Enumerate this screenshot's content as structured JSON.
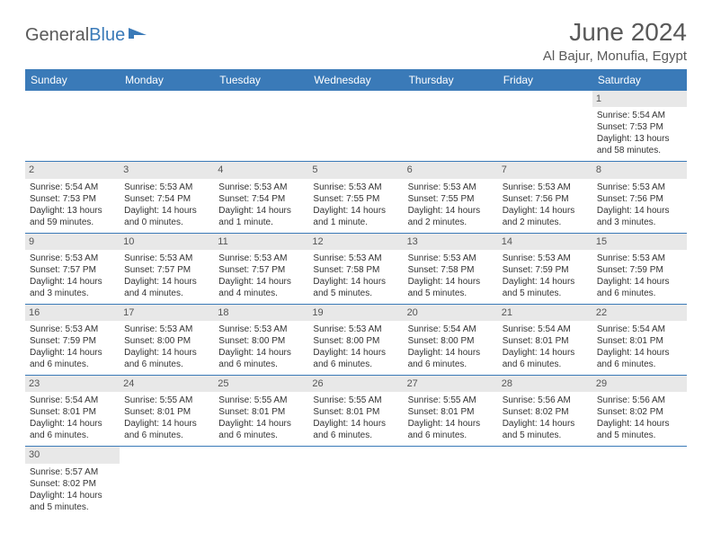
{
  "brand": {
    "name1": "General",
    "name2": "Blue"
  },
  "title": "June 2024",
  "location": "Al Bajur, Monufia, Egypt",
  "weekdays": [
    "Sunday",
    "Monday",
    "Tuesday",
    "Wednesday",
    "Thursday",
    "Friday",
    "Saturday"
  ],
  "colors": {
    "header_bg": "#3a7ab8",
    "header_text": "#ffffff",
    "daynum_bg": "#e8e8e8",
    "text": "#333333"
  },
  "rows": [
    [
      null,
      null,
      null,
      null,
      null,
      null,
      {
        "d": "1",
        "sr": "Sunrise: 5:54 AM",
        "ss": "Sunset: 7:53 PM",
        "dl1": "Daylight: 13 hours",
        "dl2": "and 58 minutes."
      }
    ],
    [
      {
        "d": "2",
        "sr": "Sunrise: 5:54 AM",
        "ss": "Sunset: 7:53 PM",
        "dl1": "Daylight: 13 hours",
        "dl2": "and 59 minutes."
      },
      {
        "d": "3",
        "sr": "Sunrise: 5:53 AM",
        "ss": "Sunset: 7:54 PM",
        "dl1": "Daylight: 14 hours",
        "dl2": "and 0 minutes."
      },
      {
        "d": "4",
        "sr": "Sunrise: 5:53 AM",
        "ss": "Sunset: 7:54 PM",
        "dl1": "Daylight: 14 hours",
        "dl2": "and 1 minute."
      },
      {
        "d": "5",
        "sr": "Sunrise: 5:53 AM",
        "ss": "Sunset: 7:55 PM",
        "dl1": "Daylight: 14 hours",
        "dl2": "and 1 minute."
      },
      {
        "d": "6",
        "sr": "Sunrise: 5:53 AM",
        "ss": "Sunset: 7:55 PM",
        "dl1": "Daylight: 14 hours",
        "dl2": "and 2 minutes."
      },
      {
        "d": "7",
        "sr": "Sunrise: 5:53 AM",
        "ss": "Sunset: 7:56 PM",
        "dl1": "Daylight: 14 hours",
        "dl2": "and 2 minutes."
      },
      {
        "d": "8",
        "sr": "Sunrise: 5:53 AM",
        "ss": "Sunset: 7:56 PM",
        "dl1": "Daylight: 14 hours",
        "dl2": "and 3 minutes."
      }
    ],
    [
      {
        "d": "9",
        "sr": "Sunrise: 5:53 AM",
        "ss": "Sunset: 7:57 PM",
        "dl1": "Daylight: 14 hours",
        "dl2": "and 3 minutes."
      },
      {
        "d": "10",
        "sr": "Sunrise: 5:53 AM",
        "ss": "Sunset: 7:57 PM",
        "dl1": "Daylight: 14 hours",
        "dl2": "and 4 minutes."
      },
      {
        "d": "11",
        "sr": "Sunrise: 5:53 AM",
        "ss": "Sunset: 7:57 PM",
        "dl1": "Daylight: 14 hours",
        "dl2": "and 4 minutes."
      },
      {
        "d": "12",
        "sr": "Sunrise: 5:53 AM",
        "ss": "Sunset: 7:58 PM",
        "dl1": "Daylight: 14 hours",
        "dl2": "and 5 minutes."
      },
      {
        "d": "13",
        "sr": "Sunrise: 5:53 AM",
        "ss": "Sunset: 7:58 PM",
        "dl1": "Daylight: 14 hours",
        "dl2": "and 5 minutes."
      },
      {
        "d": "14",
        "sr": "Sunrise: 5:53 AM",
        "ss": "Sunset: 7:59 PM",
        "dl1": "Daylight: 14 hours",
        "dl2": "and 5 minutes."
      },
      {
        "d": "15",
        "sr": "Sunrise: 5:53 AM",
        "ss": "Sunset: 7:59 PM",
        "dl1": "Daylight: 14 hours",
        "dl2": "and 6 minutes."
      }
    ],
    [
      {
        "d": "16",
        "sr": "Sunrise: 5:53 AM",
        "ss": "Sunset: 7:59 PM",
        "dl1": "Daylight: 14 hours",
        "dl2": "and 6 minutes."
      },
      {
        "d": "17",
        "sr": "Sunrise: 5:53 AM",
        "ss": "Sunset: 8:00 PM",
        "dl1": "Daylight: 14 hours",
        "dl2": "and 6 minutes."
      },
      {
        "d": "18",
        "sr": "Sunrise: 5:53 AM",
        "ss": "Sunset: 8:00 PM",
        "dl1": "Daylight: 14 hours",
        "dl2": "and 6 minutes."
      },
      {
        "d": "19",
        "sr": "Sunrise: 5:53 AM",
        "ss": "Sunset: 8:00 PM",
        "dl1": "Daylight: 14 hours",
        "dl2": "and 6 minutes."
      },
      {
        "d": "20",
        "sr": "Sunrise: 5:54 AM",
        "ss": "Sunset: 8:00 PM",
        "dl1": "Daylight: 14 hours",
        "dl2": "and 6 minutes."
      },
      {
        "d": "21",
        "sr": "Sunrise: 5:54 AM",
        "ss": "Sunset: 8:01 PM",
        "dl1": "Daylight: 14 hours",
        "dl2": "and 6 minutes."
      },
      {
        "d": "22",
        "sr": "Sunrise: 5:54 AM",
        "ss": "Sunset: 8:01 PM",
        "dl1": "Daylight: 14 hours",
        "dl2": "and 6 minutes."
      }
    ],
    [
      {
        "d": "23",
        "sr": "Sunrise: 5:54 AM",
        "ss": "Sunset: 8:01 PM",
        "dl1": "Daylight: 14 hours",
        "dl2": "and 6 minutes."
      },
      {
        "d": "24",
        "sr": "Sunrise: 5:55 AM",
        "ss": "Sunset: 8:01 PM",
        "dl1": "Daylight: 14 hours",
        "dl2": "and 6 minutes."
      },
      {
        "d": "25",
        "sr": "Sunrise: 5:55 AM",
        "ss": "Sunset: 8:01 PM",
        "dl1": "Daylight: 14 hours",
        "dl2": "and 6 minutes."
      },
      {
        "d": "26",
        "sr": "Sunrise: 5:55 AM",
        "ss": "Sunset: 8:01 PM",
        "dl1": "Daylight: 14 hours",
        "dl2": "and 6 minutes."
      },
      {
        "d": "27",
        "sr": "Sunrise: 5:55 AM",
        "ss": "Sunset: 8:01 PM",
        "dl1": "Daylight: 14 hours",
        "dl2": "and 6 minutes."
      },
      {
        "d": "28",
        "sr": "Sunrise: 5:56 AM",
        "ss": "Sunset: 8:02 PM",
        "dl1": "Daylight: 14 hours",
        "dl2": "and 5 minutes."
      },
      {
        "d": "29",
        "sr": "Sunrise: 5:56 AM",
        "ss": "Sunset: 8:02 PM",
        "dl1": "Daylight: 14 hours",
        "dl2": "and 5 minutes."
      }
    ],
    [
      {
        "d": "30",
        "sr": "Sunrise: 5:57 AM",
        "ss": "Sunset: 8:02 PM",
        "dl1": "Daylight: 14 hours",
        "dl2": "and 5 minutes."
      },
      null,
      null,
      null,
      null,
      null,
      null
    ]
  ]
}
